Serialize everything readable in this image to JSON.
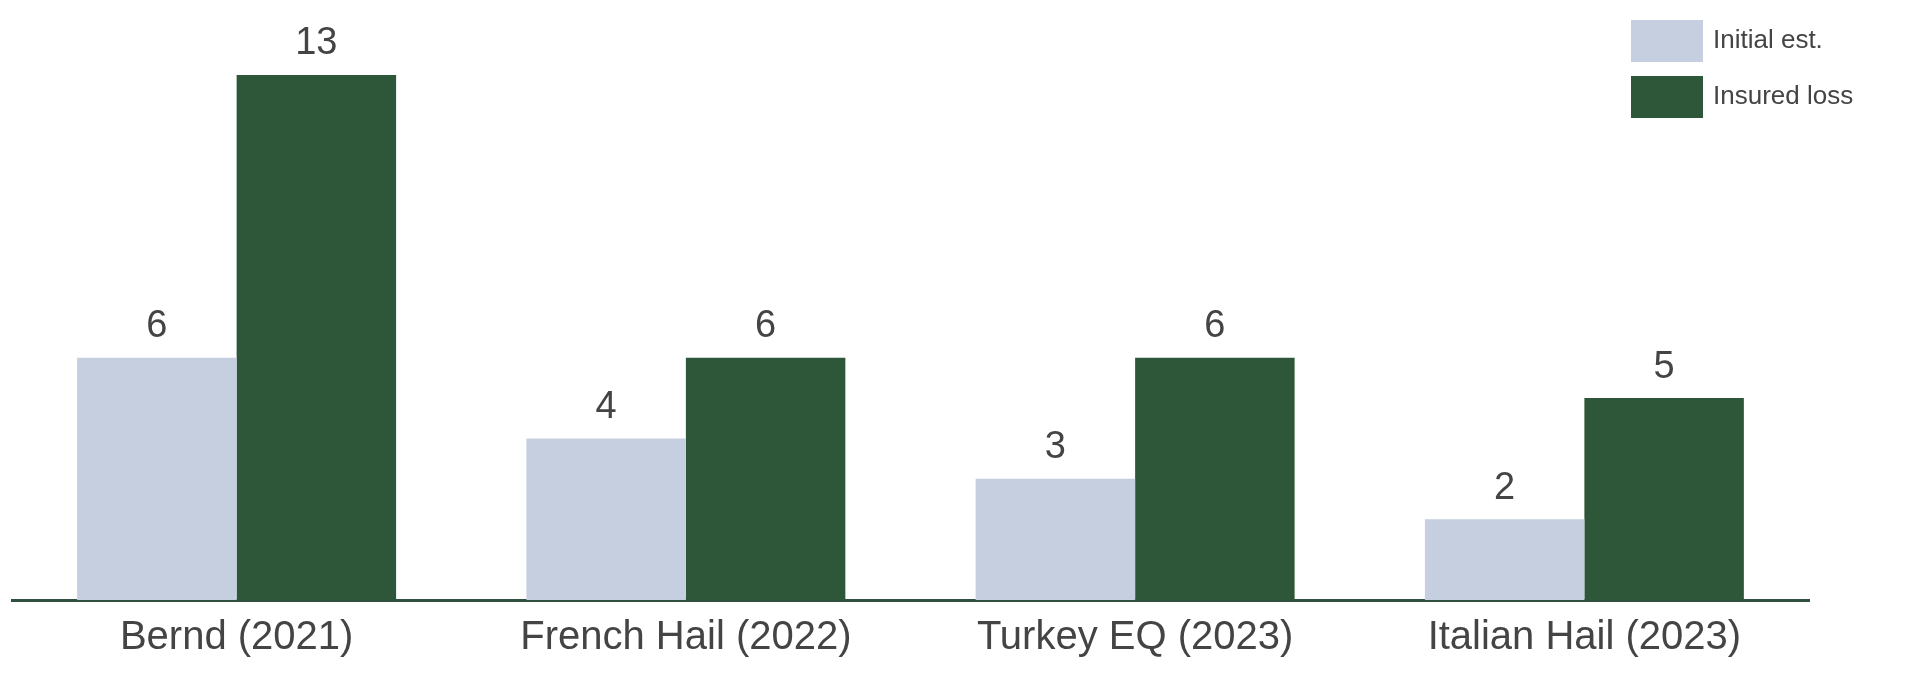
{
  "chart_data": {
    "type": "bar",
    "categories": [
      "Bernd (2021)",
      "French Hail (2022)",
      "Turkey EQ (2023)",
      "Italian Hail (2023)"
    ],
    "series": [
      {
        "name": "Initial est.",
        "color": "#c5cfe0",
        "values": [
          6,
          4,
          3,
          2
        ]
      },
      {
        "name": "Insured loss",
        "color": "#2d5738",
        "values": [
          13,
          6,
          6,
          5
        ]
      }
    ],
    "data_labels": true,
    "legend": "top right"
  }
}
